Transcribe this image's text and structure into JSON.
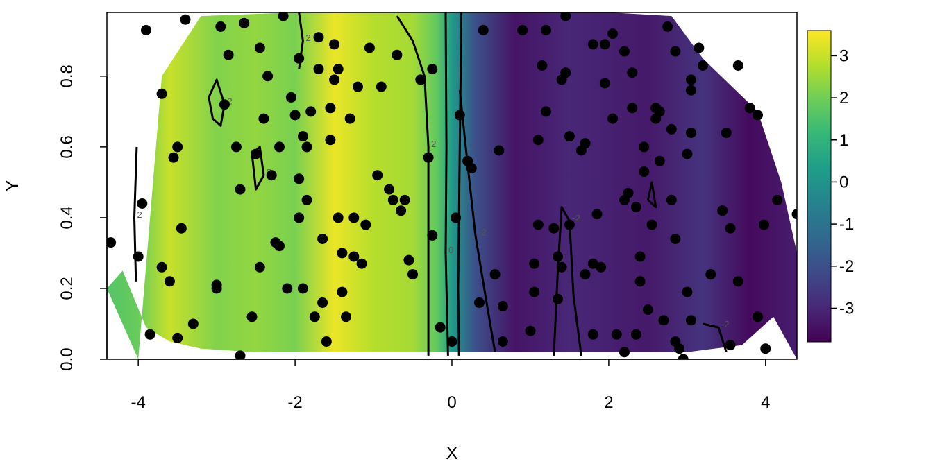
{
  "chart_data": {
    "type": "heatmap",
    "title": "",
    "xlabel": "X",
    "ylabel": "Y",
    "xlim": [
      -4.4,
      4.4
    ],
    "ylim": [
      0.0,
      0.98
    ],
    "x_ticks": [
      -4,
      -2,
      0,
      2,
      4
    ],
    "x_tick_labels": [
      "-4",
      "-2",
      "0",
      "2",
      "4"
    ],
    "y_ticks": [
      0.0,
      0.2,
      0.4,
      0.6,
      0.8
    ],
    "y_tick_labels": [
      "0.0",
      "0.2",
      "0.4",
      "0.6",
      "0.8"
    ],
    "colorbar": {
      "position": "right",
      "range": [
        -3.8,
        3.6
      ],
      "ticks": [
        3,
        2,
        1,
        0,
        -1,
        -2,
        -3
      ],
      "tick_labels": [
        "3",
        "2",
        "1",
        "0",
        "-1",
        "-2",
        "-3"
      ],
      "colormap": "viridis",
      "colors": [
        "#440154",
        "#482878",
        "#3E4A89",
        "#31688E",
        "#26828E",
        "#1F9E89",
        "#35B779",
        "#6DCD59",
        "#B4DE2C",
        "#FDE725"
      ]
    },
    "surface_profile": {
      "x": [
        -4.4,
        -4.0,
        -3.6,
        -3.0,
        -2.5,
        -2.0,
        -1.5,
        -1.0,
        -0.5,
        -0.2,
        0.0,
        0.3,
        0.8,
        1.5,
        2.5,
        3.2,
        3.8,
        4.4
      ],
      "z": [
        1.6,
        1.9,
        3.0,
        2.2,
        2.4,
        2.1,
        3.4,
        2.8,
        2.6,
        1.8,
        0.2,
        -2.0,
        -3.4,
        -3.0,
        -3.3,
        -2.7,
        -3.6,
        -3.2
      ]
    },
    "domain_outline": {
      "top": [
        [
          -4.0,
          0.0
        ],
        [
          -3.7,
          0.8
        ],
        [
          -3.2,
          0.97
        ],
        [
          -2.0,
          0.98
        ],
        [
          2.0,
          0.98
        ],
        [
          2.8,
          0.97
        ],
        [
          3.2,
          0.85
        ],
        [
          3.9,
          0.7
        ],
        [
          4.2,
          0.5
        ],
        [
          4.4,
          0.3
        ],
        [
          4.4,
          0.0
        ]
      ],
      "bottom": [
        [
          -4.4,
          0.2
        ],
        [
          -4.2,
          0.25
        ],
        [
          -3.9,
          0.09
        ],
        [
          -3.6,
          0.05
        ],
        [
          -3.2,
          0.03
        ],
        [
          -2.5,
          0.02
        ],
        [
          0.0,
          0.02
        ],
        [
          3.0,
          0.02
        ],
        [
          3.7,
          0.04
        ],
        [
          4.1,
          0.12
        ]
      ]
    },
    "contours": [
      {
        "label": "2",
        "points": [
          [
            -4.03,
            0.22
          ],
          [
            -4.05,
            0.4
          ],
          [
            -4.02,
            0.6
          ]
        ]
      },
      {
        "label": "2",
        "points": [
          [
            -3.05,
            0.68
          ],
          [
            -3.1,
            0.74
          ],
          [
            -3.0,
            0.79
          ],
          [
            -2.9,
            0.72
          ],
          [
            -2.95,
            0.66
          ],
          [
            -3.05,
            0.68
          ]
        ]
      },
      {
        "label": "2",
        "points": [
          [
            -2.55,
            0.58
          ],
          [
            -2.5,
            0.48
          ],
          [
            -2.4,
            0.52
          ],
          [
            -2.45,
            0.6
          ],
          [
            -2.55,
            0.58
          ]
        ]
      },
      {
        "label": "2",
        "points": [
          [
            -1.95,
            0.82
          ],
          [
            -1.9,
            0.9
          ],
          [
            -1.95,
            0.98
          ]
        ]
      },
      {
        "label": "2",
        "points": [
          [
            -0.7,
            0.97
          ],
          [
            -0.5,
            0.9
          ],
          [
            -0.35,
            0.8
          ],
          [
            -0.3,
            0.6
          ],
          [
            -0.3,
            0.3
          ],
          [
            -0.3,
            0.01
          ]
        ]
      },
      {
        "label": "0",
        "points": [
          [
            -0.08,
            0.98
          ],
          [
            -0.07,
            0.6
          ],
          [
            -0.08,
            0.3
          ],
          [
            -0.05,
            0.01
          ]
        ]
      },
      {
        "label": "",
        "points": [
          [
            0.12,
            0.98
          ],
          [
            0.1,
            0.6
          ],
          [
            0.08,
            0.2
          ],
          [
            0.09,
            0.01
          ]
        ]
      },
      {
        "label": "-2",
        "points": [
          [
            0.1,
            0.76
          ],
          [
            0.2,
            0.55
          ],
          [
            0.3,
            0.35
          ],
          [
            0.45,
            0.15
          ],
          [
            0.55,
            0.02
          ]
        ]
      },
      {
        "label": "-2",
        "points": [
          [
            1.3,
            0.01
          ],
          [
            1.35,
            0.25
          ],
          [
            1.4,
            0.43
          ],
          [
            1.5,
            0.39
          ],
          [
            1.55,
            0.18
          ],
          [
            1.65,
            0.01
          ]
        ]
      },
      {
        "label": "",
        "points": [
          [
            2.5,
            0.45
          ],
          [
            2.55,
            0.5
          ],
          [
            2.6,
            0.43
          ],
          [
            2.5,
            0.45
          ]
        ]
      },
      {
        "label": "-2",
        "points": [
          [
            3.2,
            0.1
          ],
          [
            3.4,
            0.09
          ],
          [
            3.5,
            0.02
          ]
        ]
      }
    ],
    "points": [
      [
        -4.35,
        0.33
      ],
      [
        -4.0,
        0.29
      ],
      [
        -3.95,
        0.44
      ],
      [
        -3.9,
        0.93
      ],
      [
        -3.7,
        0.75
      ],
      [
        -3.7,
        0.26
      ],
      [
        -3.55,
        0.57
      ],
      [
        -3.5,
        0.6
      ],
      [
        -3.45,
        0.37
      ],
      [
        -3.4,
        0.96
      ],
      [
        -3.3,
        0.1
      ],
      [
        -3.0,
        0.2
      ],
      [
        -2.95,
        0.94
      ],
      [
        -2.9,
        0.72
      ],
      [
        -2.85,
        0.86
      ],
      [
        -2.75,
        0.6
      ],
      [
        -2.7,
        0.48
      ],
      [
        -2.65,
        0.95
      ],
      [
        -2.55,
        0.12
      ],
      [
        -2.5,
        0.58
      ],
      [
        -2.45,
        0.26
      ],
      [
        -2.45,
        0.88
      ],
      [
        -2.4,
        0.68
      ],
      [
        -2.35,
        0.8
      ],
      [
        -2.3,
        0.52
      ],
      [
        -2.25,
        0.33
      ],
      [
        -2.2,
        0.6
      ],
      [
        -2.15,
        0.97
      ],
      [
        -2.05,
        0.74
      ],
      [
        -2.0,
        0.69
      ],
      [
        -1.95,
        0.85
      ],
      [
        -1.95,
        0.51
      ],
      [
        -1.95,
        0.4
      ],
      [
        -1.9,
        0.2
      ],
      [
        -1.85,
        0.6
      ],
      [
        -1.85,
        0.45
      ],
      [
        -1.8,
        0.7
      ],
      [
        -1.75,
        0.12
      ],
      [
        -1.7,
        0.91
      ],
      [
        -1.7,
        0.82
      ],
      [
        -1.65,
        0.34
      ],
      [
        -1.65,
        0.16
      ],
      [
        -1.6,
        0.05
      ],
      [
        -1.55,
        0.71
      ],
      [
        -1.55,
        0.62
      ],
      [
        -1.5,
        0.89
      ],
      [
        -1.5,
        0.79
      ],
      [
        -1.45,
        0.82
      ],
      [
        -1.45,
        0.4
      ],
      [
        -1.4,
        0.3
      ],
      [
        -1.4,
        0.19
      ],
      [
        -1.35,
        0.12
      ],
      [
        -1.3,
        0.68
      ],
      [
        -1.25,
        0.4
      ],
      [
        -1.2,
        0.77
      ],
      [
        -1.15,
        0.27
      ],
      [
        -1.1,
        0.38
      ],
      [
        -1.05,
        0.88
      ],
      [
        -0.95,
        0.52
      ],
      [
        -0.9,
        0.77
      ],
      [
        -0.8,
        0.48
      ],
      [
        -0.75,
        0.45
      ],
      [
        -0.7,
        0.86
      ],
      [
        -0.65,
        0.42
      ],
      [
        -0.6,
        0.45
      ],
      [
        -0.55,
        0.28
      ],
      [
        -0.5,
        0.24
      ],
      [
        -0.4,
        0.79
      ],
      [
        -0.3,
        0.57
      ],
      [
        -0.25,
        0.35
      ],
      [
        0.0,
        0.05
      ],
      [
        0.05,
        0.4
      ],
      [
        0.1,
        0.69
      ],
      [
        0.2,
        0.56
      ],
      [
        0.25,
        0.54
      ],
      [
        0.35,
        0.16
      ],
      [
        0.4,
        0.93
      ],
      [
        0.55,
        0.24
      ],
      [
        0.6,
        0.59
      ],
      [
        0.65,
        0.15
      ],
      [
        0.65,
        0.05
      ],
      [
        0.9,
        0.93
      ],
      [
        1.0,
        0.08
      ],
      [
        1.05,
        0.27
      ],
      [
        1.05,
        0.19
      ],
      [
        1.1,
        0.62
      ],
      [
        1.1,
        0.38
      ],
      [
        1.15,
        0.83
      ],
      [
        1.2,
        0.93
      ],
      [
        1.2,
        0.7
      ],
      [
        1.3,
        0.37
      ],
      [
        1.35,
        0.29
      ],
      [
        1.35,
        0.17
      ],
      [
        1.4,
        0.79
      ],
      [
        1.4,
        0.26
      ],
      [
        1.45,
        0.97
      ],
      [
        1.45,
        0.81
      ],
      [
        1.5,
        0.38
      ],
      [
        1.5,
        0.63
      ],
      [
        1.65,
        0.59
      ],
      [
        1.7,
        0.61
      ],
      [
        1.7,
        0.24
      ],
      [
        1.8,
        0.89
      ],
      [
        1.8,
        0.27
      ],
      [
        1.85,
        0.41
      ],
      [
        1.9,
        0.26
      ],
      [
        1.95,
        0.78
      ],
      [
        1.95,
        0.89
      ],
      [
        2.05,
        0.92
      ],
      [
        2.05,
        0.68
      ],
      [
        2.1,
        0.07
      ],
      [
        2.2,
        0.87
      ],
      [
        2.2,
        0.45
      ],
      [
        2.25,
        0.47
      ],
      [
        2.3,
        0.81
      ],
      [
        2.3,
        0.71
      ],
      [
        2.35,
        0.43
      ],
      [
        2.35,
        0.07
      ],
      [
        2.4,
        0.22
      ],
      [
        2.4,
        0.29
      ],
      [
        2.45,
        0.6
      ],
      [
        2.45,
        0.53
      ],
      [
        2.5,
        0.14
      ],
      [
        2.55,
        0.38
      ],
      [
        2.6,
        0.71
      ],
      [
        2.6,
        0.68
      ],
      [
        2.65,
        0.7
      ],
      [
        2.65,
        0.56
      ],
      [
        2.7,
        0.11
      ],
      [
        2.75,
        0.94
      ],
      [
        2.8,
        0.65
      ],
      [
        2.8,
        0.45
      ],
      [
        2.85,
        0.87
      ],
      [
        2.85,
        0.34
      ],
      [
        2.85,
        0.05
      ],
      [
        2.9,
        0.03
      ],
      [
        2.95,
        0.0
      ],
      [
        3.0,
        0.58
      ],
      [
        3.0,
        0.19
      ],
      [
        3.05,
        0.76
      ],
      [
        3.05,
        0.79
      ],
      [
        3.05,
        0.64
      ],
      [
        3.05,
        0.11
      ],
      [
        3.15,
        0.88
      ],
      [
        3.2,
        0.83
      ],
      [
        3.3,
        0.24
      ],
      [
        3.45,
        0.42
      ],
      [
        3.5,
        0.64
      ],
      [
        3.55,
        0.37
      ],
      [
        3.55,
        0.04
      ],
      [
        3.65,
        0.83
      ],
      [
        3.65,
        0.22
      ],
      [
        3.8,
        0.71
      ],
      [
        3.9,
        0.69
      ],
      [
        3.9,
        0.12
      ],
      [
        3.98,
        0.38
      ],
      [
        4.0,
        0.03
      ],
      [
        4.15,
        0.45
      ],
      [
        4.4,
        0.41
      ],
      [
        -3.85,
        0.07
      ],
      [
        -3.6,
        0.22
      ],
      [
        -3.5,
        0.06
      ],
      [
        -3.0,
        0.21
      ],
      [
        -2.7,
        0.01
      ],
      [
        -2.2,
        0.32
      ],
      [
        -2.1,
        0.2
      ],
      [
        -1.9,
        0.63
      ],
      [
        -1.25,
        0.29
      ],
      [
        -0.25,
        0.82
      ],
      [
        -0.15,
        0.09
      ],
      [
        1.8,
        0.07
      ],
      [
        2.2,
        0.02
      ]
    ]
  }
}
